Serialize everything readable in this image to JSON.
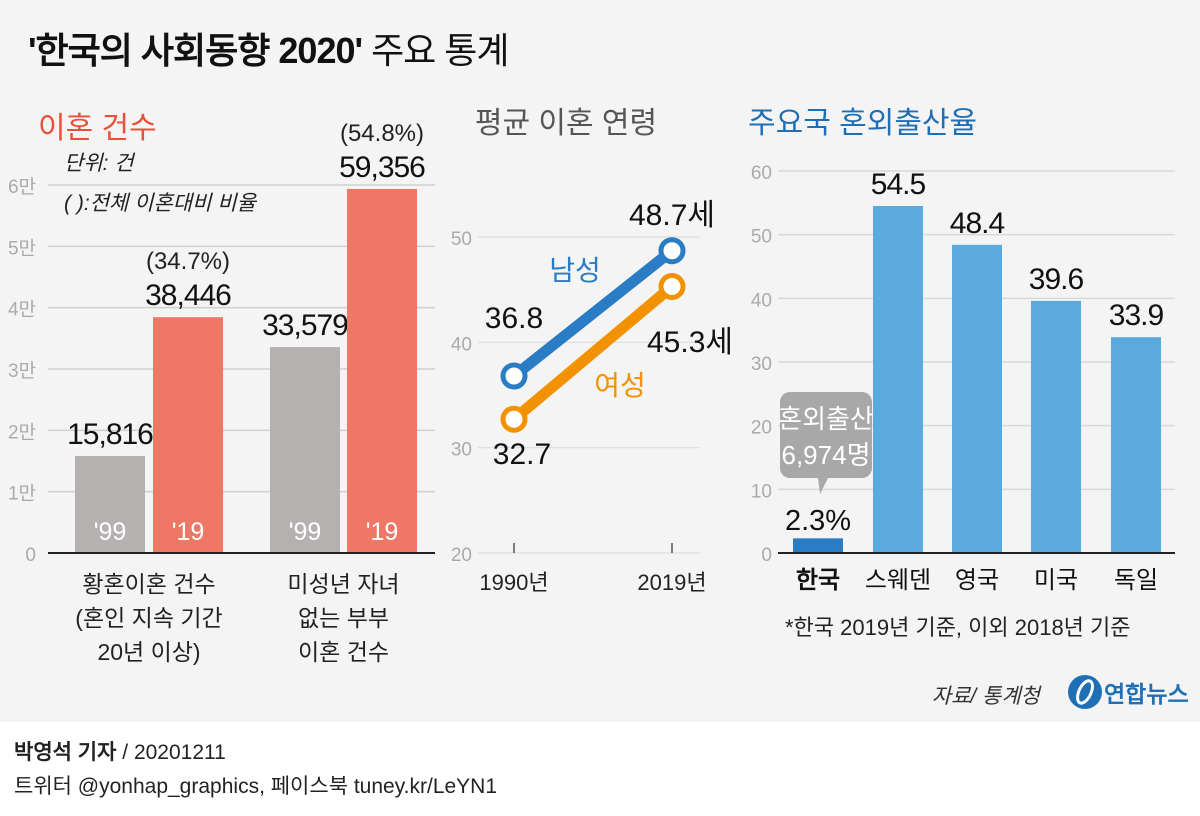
{
  "title": {
    "bold": "'한국의 사회동향 2020'",
    "normal": " 주요 통계"
  },
  "colors": {
    "gray": "#b5b1b1",
    "red": "#ef7766",
    "blue_dark": "#2a7cc4",
    "blue_light": "#5aaae0",
    "orange": "#f39200",
    "title_red": "#e8503a",
    "title_blue": "#1f6fb5"
  },
  "chart_data": [
    {
      "type": "bar",
      "title": "이혼 건수",
      "unit_note": "단위: 건",
      "ratio_note": "( ):전체 이혼대비 비율",
      "ylim": [
        0,
        60000
      ],
      "yticks": [
        0,
        10000,
        20000,
        30000,
        40000,
        50000,
        60000
      ],
      "ytick_labels": [
        "0",
        "1만",
        "2만",
        "3만",
        "4만",
        "5만",
        "6만"
      ],
      "categories": [
        {
          "label_lines": [
            "황혼이혼 건수",
            "(혼인 지속 기간",
            "20년 이상)"
          ]
        },
        {
          "label_lines": [
            "미성년 자녀",
            "없는 부부",
            "이혼 건수"
          ]
        }
      ],
      "series": [
        {
          "name": "'99",
          "values": [
            15816,
            33579
          ],
          "value_labels": [
            "15,816",
            "33,579"
          ],
          "share_labels": [
            "",
            ""
          ]
        },
        {
          "name": "'19",
          "values": [
            38446,
            59356
          ],
          "value_labels": [
            "38,446",
            "59,356"
          ],
          "share_labels": [
            "(34.7%)",
            "(54.8%)"
          ]
        }
      ]
    },
    {
      "type": "line",
      "title": "평균 이혼 연령",
      "x": [
        "1990년",
        "2019년"
      ],
      "ylim": [
        20,
        50
      ],
      "yticks": [
        20,
        30,
        40,
        50
      ],
      "series": [
        {
          "name": "남성",
          "values": [
            36.8,
            48.7
          ],
          "value_labels": [
            "36.8",
            "48.7세"
          ]
        },
        {
          "name": "여성",
          "values": [
            32.7,
            45.3
          ],
          "value_labels": [
            "32.7",
            "45.3세"
          ]
        }
      ]
    },
    {
      "type": "bar",
      "title": "주요국 혼외출산율",
      "ylim": [
        0,
        60
      ],
      "yticks": [
        0,
        10,
        20,
        30,
        40,
        50,
        60
      ],
      "categories": [
        "한국",
        "스웨덴",
        "영국",
        "미국",
        "독일"
      ],
      "values": [
        2.3,
        54.5,
        48.4,
        39.6,
        33.9
      ],
      "value_labels": [
        "2.3%",
        "54.5",
        "48.4",
        "39.6",
        "33.9"
      ],
      "callout": [
        "혼외출산",
        "6,974명"
      ],
      "footnote": "*한국 2019년 기준, 이외 2018년 기준"
    }
  ],
  "source": "자료/ 통계청",
  "logo": "연합뉴스",
  "footer": {
    "reporter": "박영석 기자",
    "date": " /  20201211",
    "social": "트위터 @yonhap_graphics, 페이스북 tuney.kr/LeYN1"
  }
}
